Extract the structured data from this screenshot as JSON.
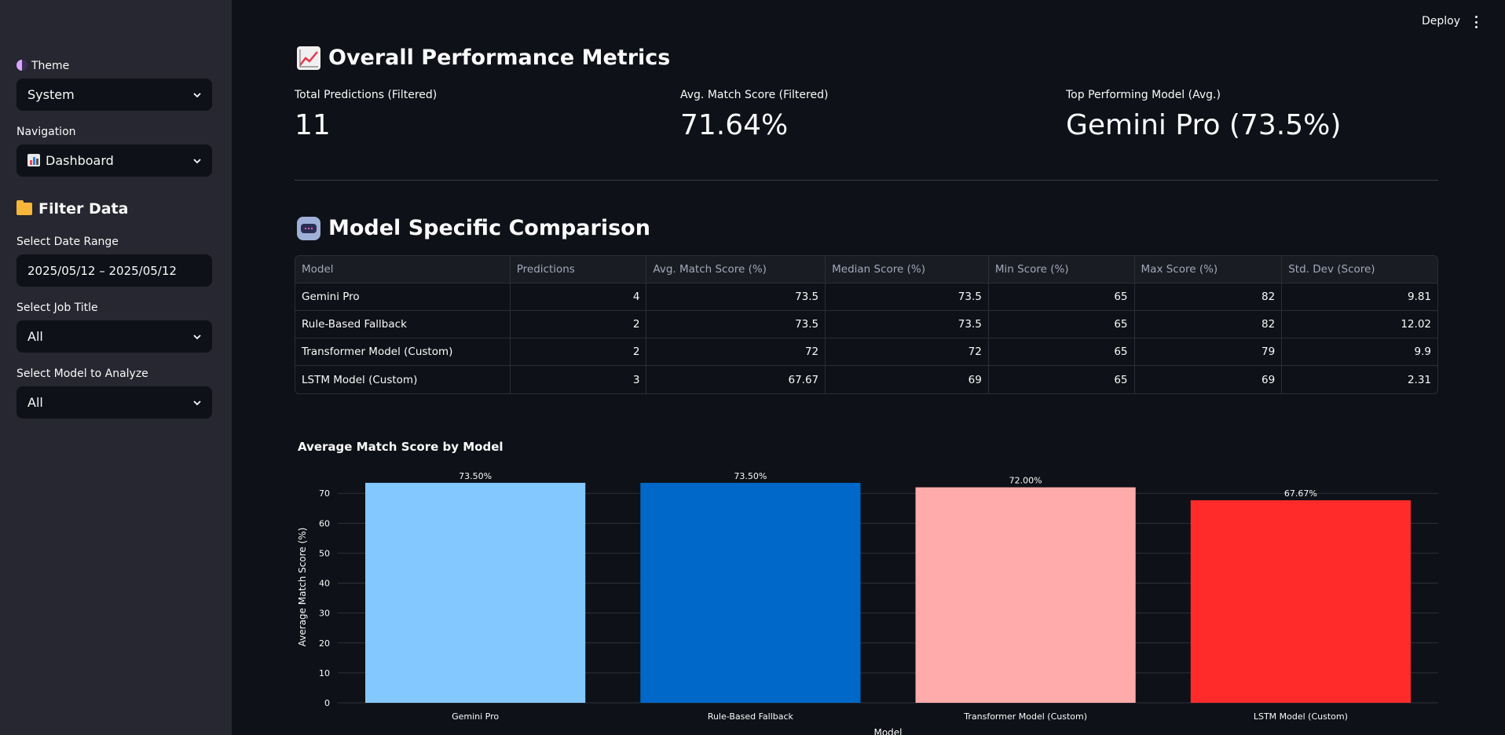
{
  "sidebar": {
    "theme_label": "Theme",
    "theme_value": "System",
    "nav_label": "Navigation",
    "nav_value": "Dashboard",
    "filter_heading": "Filter Data",
    "date_label": "Select Date Range",
    "date_value": "2025/05/12 – 2025/05/12",
    "job_label": "Select Job Title",
    "job_value": "All",
    "model_label": "Select Model to Analyze",
    "model_value": "All"
  },
  "header": {
    "deploy_label": "Deploy"
  },
  "overall": {
    "heading": "Overall Performance Metrics",
    "metrics": [
      {
        "label": "Total Predictions (Filtered)",
        "value": "11"
      },
      {
        "label": "Avg. Match Score (Filtered)",
        "value": "71.64%"
      },
      {
        "label": "Top Performing Model (Avg.)",
        "value": "Gemini Pro (73.5%)"
      }
    ]
  },
  "comparison": {
    "heading": "Model Specific Comparison",
    "columns": [
      "Model",
      "Predictions",
      "Avg. Match Score (%)",
      "Median Score (%)",
      "Min Score (%)",
      "Max Score (%)",
      "Std. Dev (Score)"
    ],
    "rows": [
      [
        "Gemini Pro",
        "4",
        "73.5",
        "73.5",
        "65",
        "82",
        "9.81"
      ],
      [
        "Rule-Based Fallback",
        "2",
        "73.5",
        "73.5",
        "65",
        "82",
        "12.02"
      ],
      [
        "Transformer Model (Custom)",
        "2",
        "72",
        "72",
        "65",
        "79",
        "9.9"
      ],
      [
        "LSTM Model (Custom)",
        "3",
        "67.67",
        "69",
        "65",
        "69",
        "2.31"
      ]
    ]
  },
  "chart_data": {
    "type": "bar",
    "title": "Average Match Score by Model",
    "xlabel": "Model",
    "ylabel": "Average Match Score (%)",
    "categories": [
      "Gemini Pro",
      "Rule-Based Fallback",
      "Transformer Model (Custom)",
      "LSTM Model (Custom)"
    ],
    "values": [
      73.5,
      73.5,
      72.0,
      67.67
    ],
    "data_labels": [
      "73.50%",
      "73.50%",
      "72.00%",
      "67.67%"
    ],
    "colors": [
      "#83c9ff",
      "#0068c9",
      "#ffabab",
      "#ff2b2b"
    ],
    "yticks": [
      0,
      10,
      20,
      30,
      40,
      50,
      60,
      70
    ],
    "ylim": [
      0,
      77.4
    ],
    "grid": true
  }
}
